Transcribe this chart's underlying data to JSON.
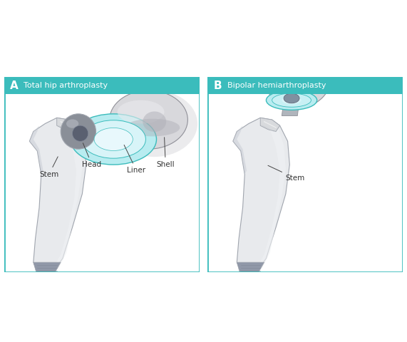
{
  "background_color": "#ffffff",
  "border_color": "#3bbcbc",
  "panel_bg": "#ffffff",
  "title_bg": "#3bbcbc",
  "title_text_color": "#ffffff",
  "label_color": "#333333",
  "stem_color_light": "#e8eaed",
  "stem_color_mid": "#d0d3d8",
  "stem_color_dark": "#b0b5bc",
  "stem_edge": "#a0a5ae",
  "neck_color": "#d8dadd",
  "head_color_main": "#8a8f98",
  "head_color_dark": "#606570",
  "head_color_shine": "#c0c4cc",
  "head_color_cup": "#5a6070",
  "liner_teal_light": "#b8ecf0",
  "liner_teal_mid": "#80d8e0",
  "liner_teal_edge": "#3bbcbc",
  "shell_color_light": "#d8d8dc",
  "shell_color_mid": "#c0c0c5",
  "shell_color_dark": "#a0a0a8",
  "shell_edge": "#909098",
  "tip_color": "#9098a8",
  "tip_stripe": "#808898",
  "panel_a_title": "Total hip arthroplasty",
  "panel_b_title": "Bipolar hemiarthroplasty",
  "label_a": "A",
  "label_b": "B"
}
